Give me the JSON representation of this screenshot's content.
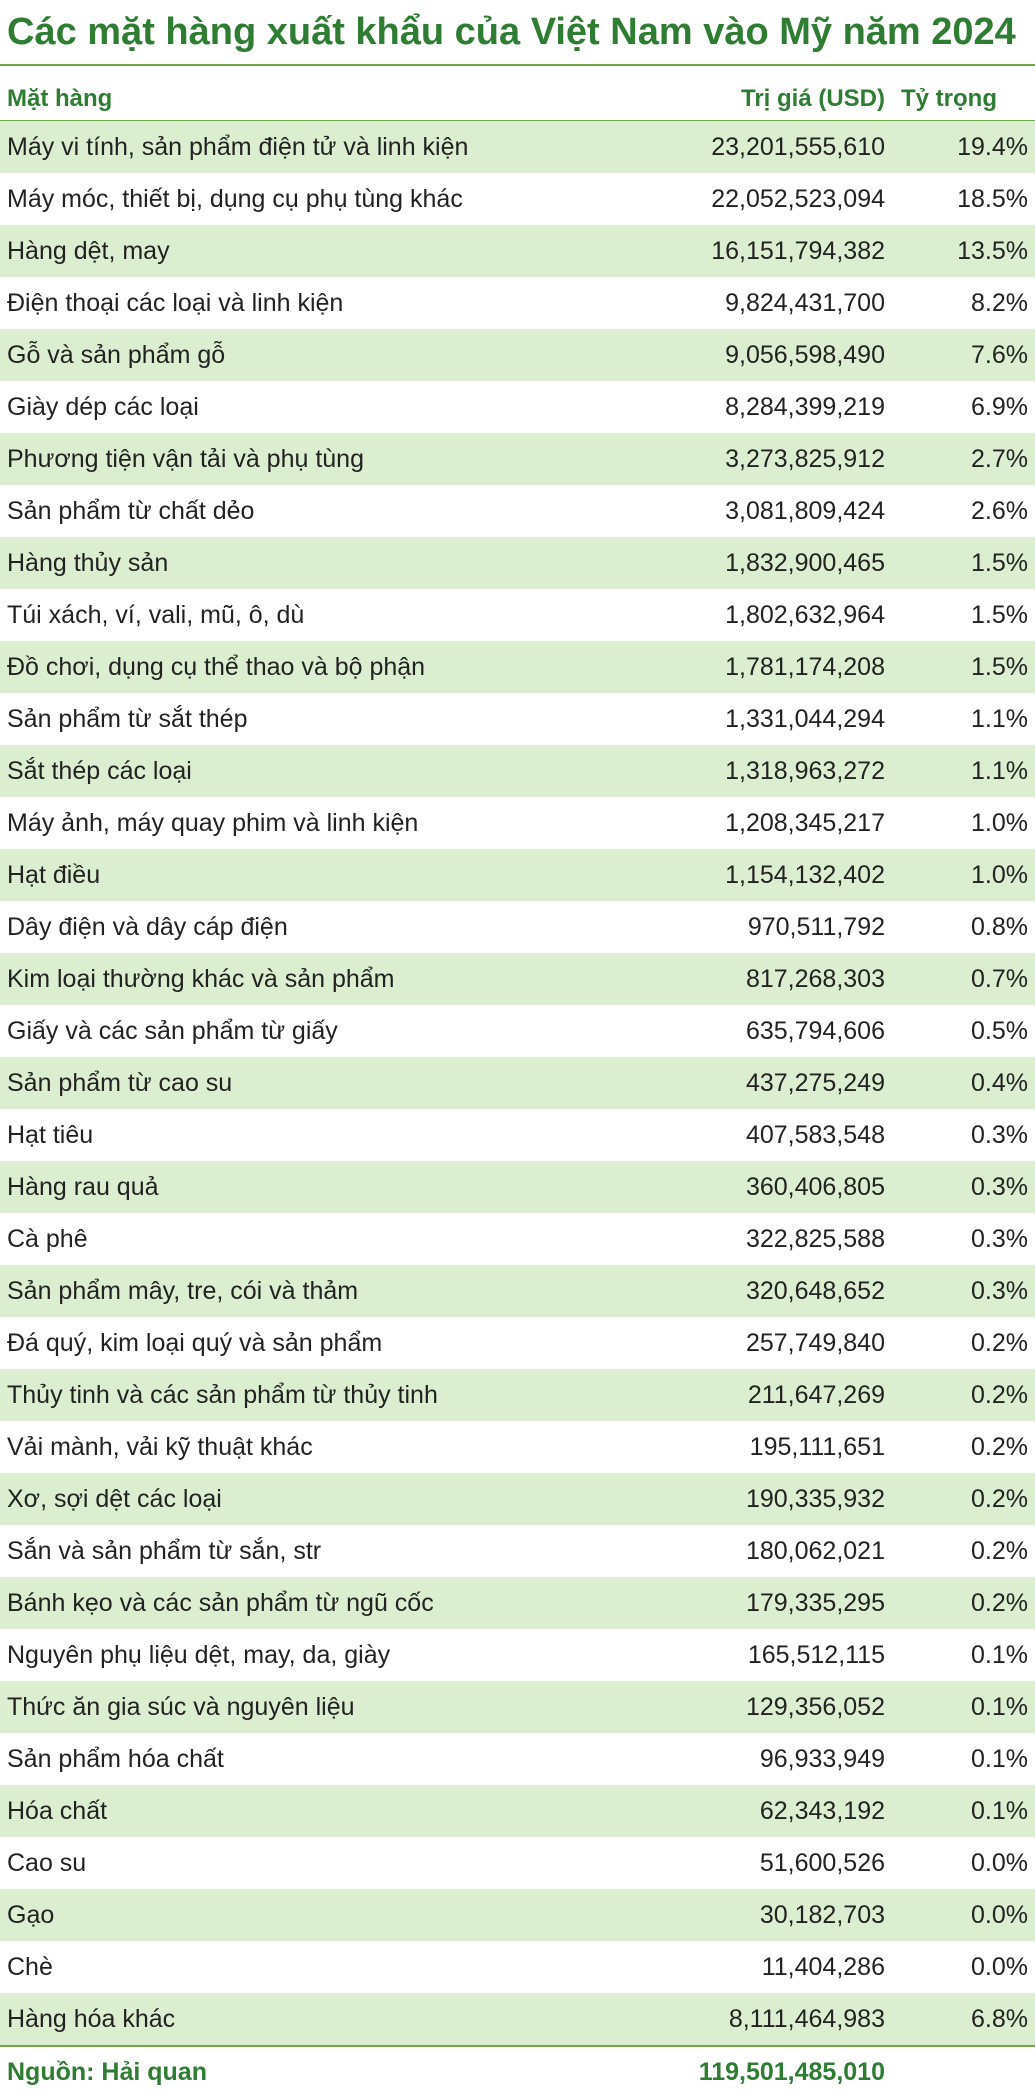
{
  "title": "Các mặt hàng xuất khẩu của Việt Nam vào Mỹ năm 2024",
  "columns": {
    "name": "Mặt hàng",
    "value": "Trị giá (USD)",
    "share": "Tỷ trọng"
  },
  "colors": {
    "accent": "#2e7d32",
    "rule": "#6fa844",
    "row_shade": "#dbefd0"
  },
  "rows": [
    {
      "name": "Máy vi tính, sản phẩm điện tử và linh kiện",
      "value": "23,201,555,610",
      "share": "19.4%"
    },
    {
      "name": "Máy móc, thiết bị, dụng cụ phụ tùng khác",
      "value": "22,052,523,094",
      "share": "18.5%"
    },
    {
      "name": "Hàng dệt, may",
      "value": "16,151,794,382",
      "share": "13.5%"
    },
    {
      "name": "Điện thoại các loại và linh kiện",
      "value": "9,824,431,700",
      "share": "8.2%"
    },
    {
      "name": "Gỗ và sản phẩm gỗ",
      "value": "9,056,598,490",
      "share": "7.6%"
    },
    {
      "name": "Giày dép các loại",
      "value": "8,284,399,219",
      "share": "6.9%"
    },
    {
      "name": "Phương tiện vận tải và phụ tùng",
      "value": "3,273,825,912",
      "share": "2.7%"
    },
    {
      "name": "Sản phẩm từ chất dẻo",
      "value": "3,081,809,424",
      "share": "2.6%"
    },
    {
      "name": "Hàng thủy sản",
      "value": "1,832,900,465",
      "share": "1.5%"
    },
    {
      "name": "Túi xách, ví, vali, mũ, ô, dù",
      "value": "1,802,632,964",
      "share": "1.5%"
    },
    {
      "name": "Đồ chơi, dụng cụ thể thao và bộ phận",
      "value": "1,781,174,208",
      "share": "1.5%"
    },
    {
      "name": "Sản phẩm từ sắt thép",
      "value": "1,331,044,294",
      "share": "1.1%"
    },
    {
      "name": "Sắt thép các loại",
      "value": "1,318,963,272",
      "share": "1.1%"
    },
    {
      "name": "Máy ảnh, máy quay phim và linh kiện",
      "value": "1,208,345,217",
      "share": "1.0%"
    },
    {
      "name": "Hạt điều",
      "value": "1,154,132,402",
      "share": "1.0%"
    },
    {
      "name": "Dây điện và dây cáp điện",
      "value": "970,511,792",
      "share": "0.8%"
    },
    {
      "name": "Kim loại thường khác và sản phẩm",
      "value": "817,268,303",
      "share": "0.7%"
    },
    {
      "name": "Giấy và các sản phẩm từ giấy",
      "value": "635,794,606",
      "share": "0.5%"
    },
    {
      "name": "Sản phẩm từ cao su",
      "value": "437,275,249",
      "share": "0.4%"
    },
    {
      "name": "Hạt tiêu",
      "value": "407,583,548",
      "share": "0.3%"
    },
    {
      "name": "Hàng rau quả",
      "value": "360,406,805",
      "share": "0.3%"
    },
    {
      "name": "Cà phê",
      "value": "322,825,588",
      "share": "0.3%"
    },
    {
      "name": "Sản phẩm mây, tre, cói và thảm",
      "value": "320,648,652",
      "share": "0.3%"
    },
    {
      "name": "Đá quý, kim loại quý và sản phẩm",
      "value": "257,749,840",
      "share": "0.2%"
    },
    {
      "name": "Thủy tinh và các sản phẩm từ thủy tinh",
      "value": "211,647,269",
      "share": "0.2%"
    },
    {
      "name": "Vải mành, vải kỹ thuật khác",
      "value": "195,111,651",
      "share": "0.2%"
    },
    {
      "name": "Xơ, sợi dệt các loại",
      "value": "190,335,932",
      "share": "0.2%"
    },
    {
      "name": "Sắn và sản phẩm từ sắn, str",
      "value": "180,062,021",
      "share": "0.2%"
    },
    {
      "name": "Bánh kẹo và các sản phẩm từ ngũ cốc",
      "value": "179,335,295",
      "share": "0.2%"
    },
    {
      "name": "Nguyên phụ liệu dệt, may, da, giày",
      "value": "165,512,115",
      "share": "0.1%"
    },
    {
      "name": "Thức ăn gia súc và nguyên liệu",
      "value": "129,356,052",
      "share": "0.1%"
    },
    {
      "name": "Sản phẩm hóa chất",
      "value": "96,933,949",
      "share": "0.1%"
    },
    {
      "name": "Hóa chất",
      "value": "62,343,192",
      "share": "0.1%"
    },
    {
      "name": "Cao su",
      "value": "51,600,526",
      "share": "0.0%"
    },
    {
      "name": "Gạo",
      "value": "30,182,703",
      "share": "0.0%"
    },
    {
      "name": "Chè",
      "value": "11,404,286",
      "share": "0.0%"
    },
    {
      "name": "Hàng hóa khác",
      "value": "8,111,464,983",
      "share": "6.8%"
    }
  ],
  "footer": {
    "source": "Nguồn: Hải quan",
    "total": "119,501,485,010"
  }
}
